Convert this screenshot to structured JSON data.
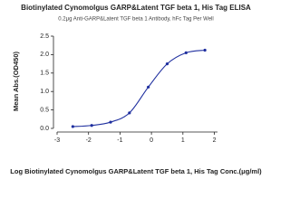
{
  "chart_data": {
    "type": "line",
    "title": "Biotinylated Cynomolgus GARP&Latent TGF beta 1, His Tag ELISA",
    "subtitle": "0.2μg Anti-GARP&Latent TGF beta 1 Antibody, hFc Tag Per Well",
    "x_label": "Log Biotinylated Cynomolgus GARP&Latent TGF beta 1, His Tag Conc.(μg/ml)",
    "y_label": "Mean Abs.(OD450)",
    "x": [
      -2.5,
      -1.9,
      -1.3,
      -0.7,
      -0.1,
      0.5,
      1.1,
      1.7
    ],
    "series": [
      {
        "name": "Mean Abs.(OD450)",
        "color": "#1f2f9f",
        "values": [
          0.05,
          0.08,
          0.17,
          0.42,
          1.12,
          1.75,
          2.05,
          2.12
        ]
      }
    ],
    "xlim": [
      -3,
      2.1
    ],
    "xticks": [
      -3,
      -2,
      -1,
      0,
      1,
      2
    ],
    "ylim": [
      0,
      2.5
    ],
    "yticks": [
      {
        "value": 0,
        "label": "0.0"
      },
      {
        "value": 0.5,
        "label": "0.5"
      },
      {
        "value": 1,
        "label": "1.0"
      },
      {
        "value": 1.5,
        "label": "1.5"
      },
      {
        "value": 2,
        "label": "2.0"
      },
      {
        "value": 2.5,
        "label": "2.5"
      }
    ],
    "grid": false
  }
}
